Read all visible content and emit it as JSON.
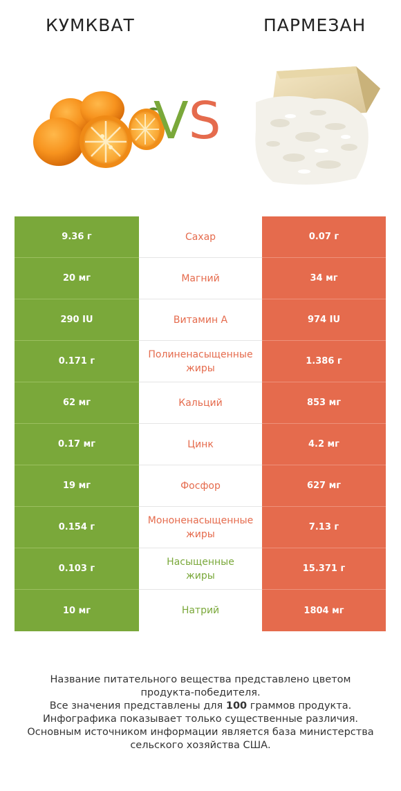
{
  "header": {
    "left_title": "КУМКВАТ",
    "right_title": "ПАРМЕЗАН",
    "vs_v": "V",
    "vs_s": "S"
  },
  "colors": {
    "left": "#7aa83a",
    "right": "#e56b4d"
  },
  "images": {
    "left": "kumquat-fruit-image",
    "right": "parmesan-cheese-image"
  },
  "rows": [
    {
      "left": "9.36 г",
      "nutrient": [
        "Сахар"
      ],
      "right": "0.07 г",
      "winner": "right"
    },
    {
      "left": "20 мг",
      "nutrient": [
        "Магний"
      ],
      "right": "34 мг",
      "winner": "right"
    },
    {
      "left": "290 IU",
      "nutrient": [
        "Витамин A"
      ],
      "right": "974 IU",
      "winner": "right"
    },
    {
      "left": "0.171 г",
      "nutrient": [
        "Полиненасыщенные",
        "жиры"
      ],
      "right": "1.386 г",
      "winner": "right"
    },
    {
      "left": "62 мг",
      "nutrient": [
        "Кальций"
      ],
      "right": "853 мг",
      "winner": "right"
    },
    {
      "left": "0.17 мг",
      "nutrient": [
        "Цинк"
      ],
      "right": "4.2 мг",
      "winner": "right"
    },
    {
      "left": "19 мг",
      "nutrient": [
        "Фосфор"
      ],
      "right": "627 мг",
      "winner": "right"
    },
    {
      "left": "0.154 г",
      "nutrient": [
        "Мононенасыщенные",
        "жиры"
      ],
      "right": "7.13 г",
      "winner": "right"
    },
    {
      "left": "0.103 г",
      "nutrient": [
        "Насыщенные",
        "жиры"
      ],
      "right": "15.371 г",
      "winner": "left"
    },
    {
      "left": "10 мг",
      "nutrient": [
        "Натрий"
      ],
      "right": "1804 мг",
      "winner": "left"
    }
  ],
  "footer": {
    "line1": "Название питательного вещества представлено цветом",
    "line2": "продукта-победителя.",
    "line3_pre": "Все значения представлены для ",
    "line3_bold": "100",
    "line3_post": " граммов продукта.",
    "line4": "Инфографика показывает только существенные различия.",
    "line5": "Основным источником информации является база министерства",
    "line6": "сельского хозяйства США."
  }
}
